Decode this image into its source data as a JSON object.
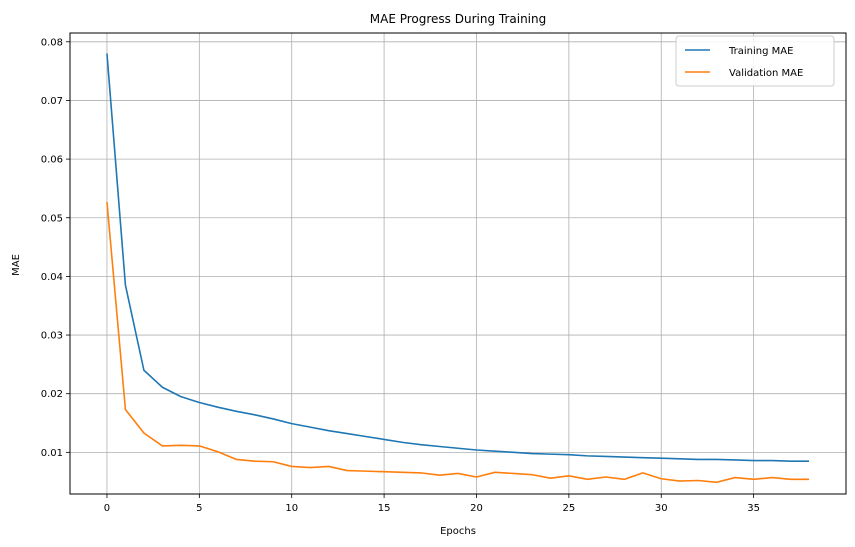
{
  "chart_data": {
    "type": "line",
    "title": "MAE Progress During Training",
    "xlabel": "Epochs",
    "ylabel": "MAE",
    "xlim": [
      -2,
      40
    ],
    "ylim": [
      0.0029,
      0.0815
    ],
    "xticks": [
      0,
      5,
      10,
      15,
      20,
      25,
      30,
      35
    ],
    "yticks": [
      0.01,
      0.02,
      0.03,
      0.04,
      0.05,
      0.06,
      0.07,
      0.08
    ],
    "ytick_labels": [
      "0.01",
      "0.02",
      "0.03",
      "0.04",
      "0.05",
      "0.06",
      "0.07",
      "0.08"
    ],
    "grid": true,
    "legend_position": "top-right",
    "x": [
      0,
      1,
      2,
      3,
      4,
      5,
      6,
      7,
      8,
      9,
      10,
      11,
      12,
      13,
      14,
      15,
      16,
      17,
      18,
      19,
      20,
      21,
      22,
      23,
      24,
      25,
      26,
      27,
      28,
      29,
      30,
      31,
      32,
      33,
      34,
      35,
      36,
      37,
      38
    ],
    "series": [
      {
        "name": "Training MAE",
        "color": "#1f77b4",
        "values": [
          0.078,
          0.0385,
          0.024,
          0.0211,
          0.0195,
          0.0185,
          0.0177,
          0.017,
          0.0164,
          0.0157,
          0.0149,
          0.0143,
          0.0137,
          0.0132,
          0.0127,
          0.0122,
          0.0117,
          0.0113,
          0.011,
          0.0107,
          0.0104,
          0.0102,
          0.01,
          0.0098,
          0.0097,
          0.0096,
          0.0094,
          0.0093,
          0.0092,
          0.0091,
          0.009,
          0.0089,
          0.0088,
          0.0088,
          0.0087,
          0.0086,
          0.0086,
          0.0085,
          0.0085
        ]
      },
      {
        "name": "Validation MAE",
        "color": "#ff7f0e",
        "values": [
          0.0527,
          0.0173,
          0.0133,
          0.0111,
          0.0112,
          0.0111,
          0.0101,
          0.0088,
          0.0085,
          0.0084,
          0.0076,
          0.0074,
          0.0076,
          0.0069,
          0.0068,
          0.0067,
          0.0066,
          0.0065,
          0.0061,
          0.0064,
          0.0058,
          0.0066,
          0.0064,
          0.0062,
          0.0056,
          0.006,
          0.0054,
          0.0058,
          0.0054,
          0.0065,
          0.0055,
          0.0051,
          0.0052,
          0.0049,
          0.0057,
          0.0054,
          0.0057,
          0.0054,
          0.0054
        ]
      }
    ]
  }
}
